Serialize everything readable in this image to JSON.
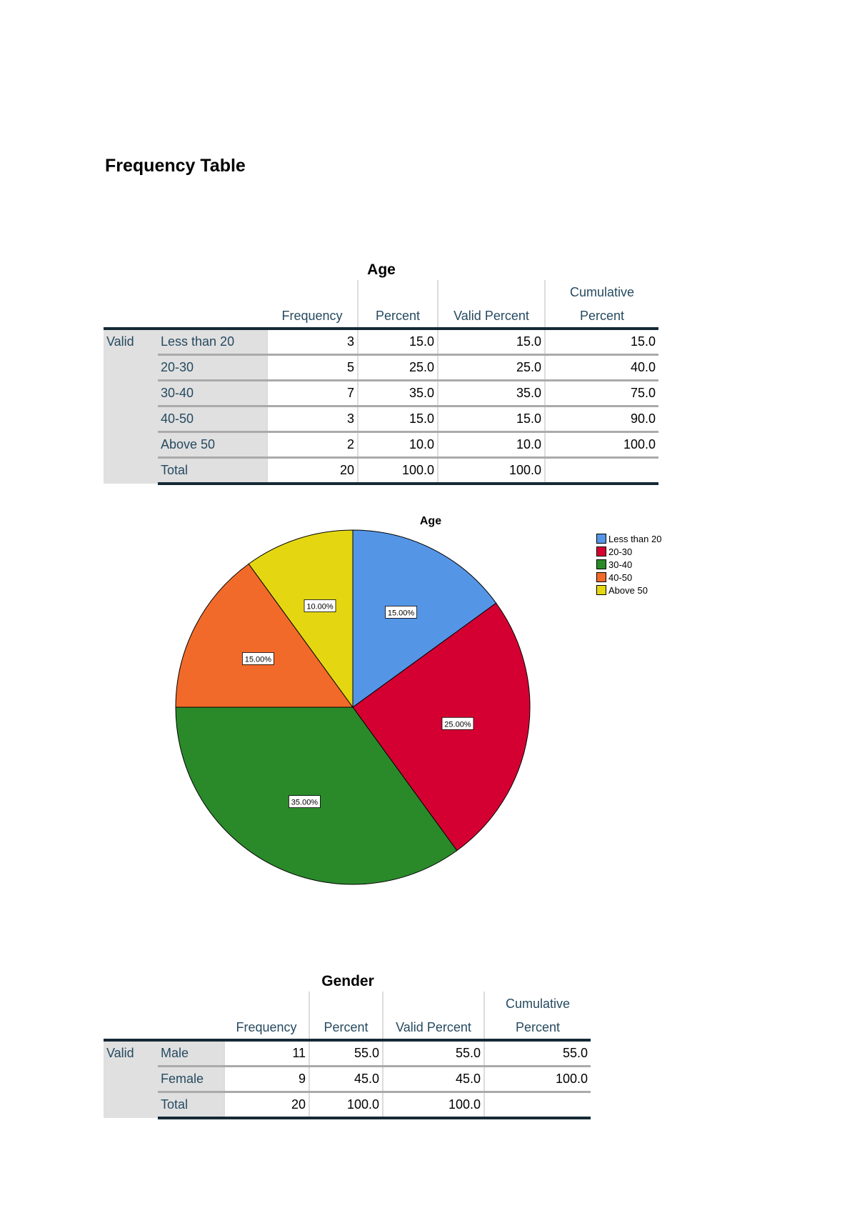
{
  "doc_title": "Frequency Table",
  "age_table": {
    "title": "Age",
    "headers": {
      "frequency": "Frequency",
      "percent": "Percent",
      "valid_percent": "Valid Percent",
      "cumulative_1": "Cumulative",
      "cumulative_2": "Percent"
    },
    "group": "Valid",
    "rows": [
      {
        "label": "Less than 20",
        "frequency": "3",
        "percent": "15.0",
        "valid": "15.0",
        "cumulative": "15.0"
      },
      {
        "label": "20-30",
        "frequency": "5",
        "percent": "25.0",
        "valid": "25.0",
        "cumulative": "40.0"
      },
      {
        "label": "30-40",
        "frequency": "7",
        "percent": "35.0",
        "valid": "35.0",
        "cumulative": "75.0"
      },
      {
        "label": "40-50",
        "frequency": "3",
        "percent": "15.0",
        "valid": "15.0",
        "cumulative": "90.0"
      },
      {
        "label": "Above 50",
        "frequency": "2",
        "percent": "10.0",
        "valid": "10.0",
        "cumulative": "100.0"
      },
      {
        "label": "Total",
        "frequency": "20",
        "percent": "100.0",
        "valid": "100.0",
        "cumulative": ""
      }
    ]
  },
  "chart_data": {
    "type": "pie",
    "title": "Age",
    "categories": [
      "Less than 20",
      "20-30",
      "30-40",
      "40-50",
      "Above 50"
    ],
    "values": [
      15.0,
      25.0,
      35.0,
      15.0,
      10.0
    ],
    "labels": [
      "15.00%",
      "25.00%",
      "35.00%",
      "15.00%",
      "10.00%"
    ],
    "colors": [
      "#5595e6",
      "#d50032",
      "#2a8a2a",
      "#f26a2a",
      "#e4d712"
    ],
    "legend": "top-right"
  },
  "gender_table": {
    "title": "Gender",
    "headers": {
      "frequency": "Frequency",
      "percent": "Percent",
      "valid_percent": "Valid Percent",
      "cumulative_1": "Cumulative",
      "cumulative_2": "Percent"
    },
    "group": "Valid",
    "rows": [
      {
        "label": "Male",
        "frequency": "11",
        "percent": "55.0",
        "valid": "55.0",
        "cumulative": "55.0"
      },
      {
        "label": "Female",
        "frequency": "9",
        "percent": "45.0",
        "valid": "45.0",
        "cumulative": "100.0"
      },
      {
        "label": "Total",
        "frequency": "20",
        "percent": "100.0",
        "valid": "100.0",
        "cumulative": ""
      }
    ]
  }
}
